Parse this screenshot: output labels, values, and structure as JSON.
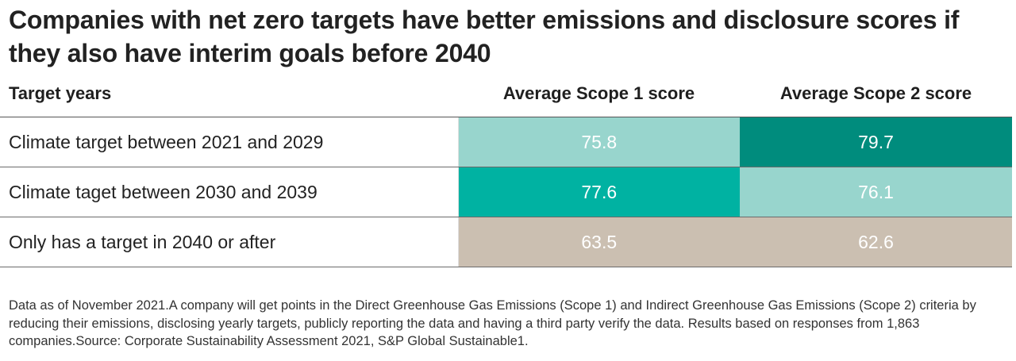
{
  "title": "Companies with net zero targets have better emissions and disclosure scores if they also have interim goals before 2040",
  "chart_data": {
    "type": "table",
    "columns": [
      "Target years",
      "Average Scope 1 score",
      "Average Scope 2 score"
    ],
    "rows": [
      {
        "label": "Climate target between 2021 and 2029",
        "cells": [
          {
            "value": "75.8",
            "color": "#98d5cd"
          },
          {
            "value": "79.7",
            "color": "#008c7d"
          }
        ]
      },
      {
        "label": "Climate taget between 2030 and 2039",
        "cells": [
          {
            "value": "77.6",
            "color": "#00b2a2"
          },
          {
            "value": "76.1",
            "color": "#98d5cd"
          }
        ]
      },
      {
        "label": "Only has a target in 2040 or after",
        "cells": [
          {
            "value": "63.5",
            "color": "#cbbfb1"
          },
          {
            "value": "62.6",
            "color": "#cbbfb1"
          }
        ]
      }
    ]
  },
  "footnote": "Data as of November 2021.A company will get points in the Direct Greenhouse Gas Emissions (Scope 1) and Indirect Greenhouse Gas Emissions (Scope 2) criteria by reducing their emissions, disclosing yearly targets, publicly reporting the data and having a third party verify the data. Results based on responses from 1,863 companies.Source: Corporate Sustainability Assessment 2021, S&P Global Sustainable1."
}
